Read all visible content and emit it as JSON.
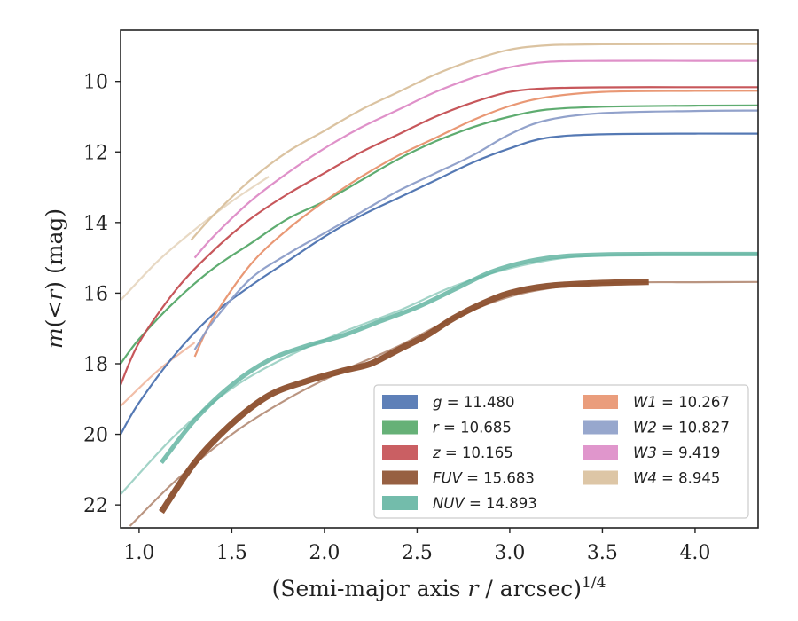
{
  "chart_data": {
    "type": "line",
    "xlabel": "(Semi-major axis r / arcsec)",
    "xlabel_parts": {
      "pre": "(Semi-major axis ",
      "var": "r",
      "post": " / arcsec)",
      "sup": "1/4"
    },
    "ylabel": "m(<r) (mag)",
    "ylabel_parts": {
      "var": "m",
      "mid": "(<",
      "var2": "r",
      "post": ") (mag)"
    },
    "xlim": [
      0.9,
      4.34
    ],
    "ylim": [
      22.65,
      8.55
    ],
    "y_inverted": true,
    "xticks": [
      "1.0",
      "1.5",
      "2.0",
      "2.5",
      "3.0",
      "3.5",
      "4.0"
    ],
    "xtick_values": [
      1.0,
      1.5,
      2.0,
      2.5,
      3.0,
      3.5,
      4.0
    ],
    "yticks": [
      "10",
      "12",
      "14",
      "16",
      "18",
      "20",
      "22"
    ],
    "ytick_values": [
      10,
      12,
      14,
      16,
      18,
      20,
      22
    ],
    "grid": false,
    "legend_position": "lower-right",
    "legend_columns": 2,
    "series": [
      {
        "name": "g = 11.480",
        "label_var": "g",
        "label_val": "= 11.480",
        "color": "#4c72b0",
        "x": [
          0.9,
          1.0,
          1.2,
          1.4,
          1.6,
          1.8,
          2.0,
          2.2,
          2.4,
          2.6,
          2.8,
          3.0,
          3.2,
          3.5,
          4.0,
          4.34
        ],
        "y": [
          20.0,
          19.1,
          17.7,
          16.6,
          15.8,
          15.1,
          14.4,
          13.8,
          13.3,
          12.8,
          12.3,
          11.9,
          11.6,
          11.5,
          11.48,
          11.48
        ],
        "width": 2.2
      },
      {
        "name": "r = 10.685",
        "label_var": "r",
        "label_val": "= 10.685",
        "color": "#55a868",
        "x": [
          0.9,
          1.0,
          1.2,
          1.4,
          1.6,
          1.8,
          2.0,
          2.2,
          2.4,
          2.6,
          2.8,
          3.0,
          3.2,
          3.5,
          4.0,
          4.34
        ],
        "y": [
          18.0,
          17.3,
          16.2,
          15.3,
          14.6,
          13.9,
          13.4,
          12.8,
          12.2,
          11.7,
          11.3,
          11.0,
          10.8,
          10.72,
          10.69,
          10.685
        ],
        "width": 2.2
      },
      {
        "name": "z = 10.165",
        "label_var": "z",
        "label_val": "= 10.165",
        "color": "#c44e52",
        "x": [
          0.9,
          1.0,
          1.2,
          1.4,
          1.6,
          1.8,
          2.0,
          2.2,
          2.4,
          2.6,
          2.8,
          3.0,
          3.2,
          3.5,
          4.0,
          4.34
        ],
        "y": [
          18.6,
          17.4,
          15.9,
          14.8,
          13.9,
          13.2,
          12.6,
          12.0,
          11.5,
          11.0,
          10.6,
          10.3,
          10.2,
          10.17,
          10.165,
          10.165
        ],
        "width": 2.2
      },
      {
        "name": "FUV = 15.683",
        "label_var": "FUV",
        "label_val": "= 15.683",
        "color": "#8c4f2d",
        "x": [
          1.12,
          1.3,
          1.5,
          1.7,
          1.9,
          2.1,
          2.25,
          2.4,
          2.55,
          2.7,
          2.85,
          3.0,
          3.2,
          3.45,
          3.75
        ],
        "y": [
          22.2,
          20.8,
          19.7,
          18.9,
          18.5,
          18.2,
          18.0,
          17.6,
          17.2,
          16.7,
          16.3,
          16.0,
          15.8,
          15.72,
          15.68
        ],
        "width": 7,
        "alpha": 0.95
      },
      {
        "name": "NUV = 14.893",
        "label_var": "NUV",
        "label_val": "= 14.893",
        "color": "#64b5a2",
        "x": [
          1.12,
          1.3,
          1.5,
          1.7,
          1.9,
          2.1,
          2.3,
          2.5,
          2.7,
          2.9,
          3.1,
          3.3,
          3.6,
          4.0,
          4.34
        ],
        "y": [
          20.8,
          19.6,
          18.6,
          17.9,
          17.5,
          17.2,
          16.8,
          16.4,
          15.9,
          15.4,
          15.1,
          14.95,
          14.9,
          14.895,
          14.893
        ],
        "width": 5,
        "alpha": 0.85
      },
      {
        "name": "W1 = 10.267",
        "label_var": "W1",
        "label_val": "= 10.267",
        "color": "#e8926e",
        "x": [
          1.3,
          1.4,
          1.6,
          1.8,
          2.0,
          2.2,
          2.4,
          2.6,
          2.8,
          3.0,
          3.2,
          3.5,
          4.0,
          4.34
        ],
        "y": [
          17.8,
          16.7,
          15.2,
          14.2,
          13.4,
          12.7,
          12.1,
          11.6,
          11.1,
          10.7,
          10.45,
          10.3,
          10.27,
          10.267
        ],
        "width": 2.2
      },
      {
        "name": "W2 = 10.827",
        "label_var": "W2",
        "label_val": "= 10.827",
        "color": "#8c9dc8",
        "x": [
          1.3,
          1.4,
          1.6,
          1.8,
          2.0,
          2.2,
          2.4,
          2.6,
          2.8,
          3.0,
          3.2,
          3.5,
          4.0,
          4.34
        ],
        "y": [
          17.6,
          16.8,
          15.6,
          14.9,
          14.3,
          13.7,
          13.1,
          12.6,
          12.1,
          11.5,
          11.1,
          10.9,
          10.84,
          10.827
        ],
        "width": 2.2
      },
      {
        "name": "W3 = 9.419",
        "label_var": "W3",
        "label_val": "= 9.419",
        "color": "#dd8bc6",
        "x": [
          1.3,
          1.4,
          1.6,
          1.8,
          2.0,
          2.2,
          2.4,
          2.6,
          2.8,
          3.0,
          3.2,
          3.5,
          4.0,
          4.34
        ],
        "y": [
          15.0,
          14.4,
          13.4,
          12.6,
          11.9,
          11.3,
          10.8,
          10.3,
          9.9,
          9.6,
          9.45,
          9.42,
          9.42,
          9.419
        ],
        "width": 2.2
      },
      {
        "name": "W4 = 8.945",
        "label_var": "W4",
        "label_val": "= 8.945",
        "color": "#d9c09c",
        "x": [
          1.28,
          1.4,
          1.6,
          1.8,
          2.0,
          2.2,
          2.4,
          2.6,
          2.8,
          3.0,
          3.2,
          3.5,
          4.0,
          4.34
        ],
        "y": [
          14.5,
          13.8,
          12.8,
          12.0,
          11.4,
          10.8,
          10.3,
          9.8,
          9.4,
          9.1,
          8.98,
          8.95,
          8.945,
          8.945
        ],
        "width": 2.2
      }
    ],
    "faint_lines": [
      {
        "color": "#64b5a2",
        "x": [
          0.9,
          1.2,
          1.5,
          1.8,
          2.1,
          2.4,
          2.7,
          3.0,
          3.3,
          3.6,
          4.0,
          4.34
        ],
        "y": [
          21.7,
          20.0,
          18.7,
          17.8,
          17.1,
          16.5,
          15.8,
          15.3,
          15.0,
          14.92,
          14.9,
          14.893
        ]
      },
      {
        "color": "#8c4f2d",
        "x": [
          0.95,
          1.2,
          1.5,
          1.8,
          2.1,
          2.4,
          2.7,
          3.0,
          3.3,
          3.6,
          4.0,
          4.34
        ],
        "y": [
          22.6,
          21.3,
          20.0,
          19.0,
          18.2,
          17.5,
          16.7,
          16.1,
          15.8,
          15.7,
          15.69,
          15.683
        ]
      },
      {
        "color": "#d9c09c",
        "x": [
          0.9,
          1.1,
          1.3,
          1.5,
          1.7
        ],
        "y": [
          16.2,
          15.1,
          14.2,
          13.4,
          12.7
        ]
      },
      {
        "color": "#e8926e",
        "x": [
          0.9,
          1.1,
          1.3
        ],
        "y": [
          19.2,
          18.2,
          17.4
        ]
      }
    ]
  }
}
